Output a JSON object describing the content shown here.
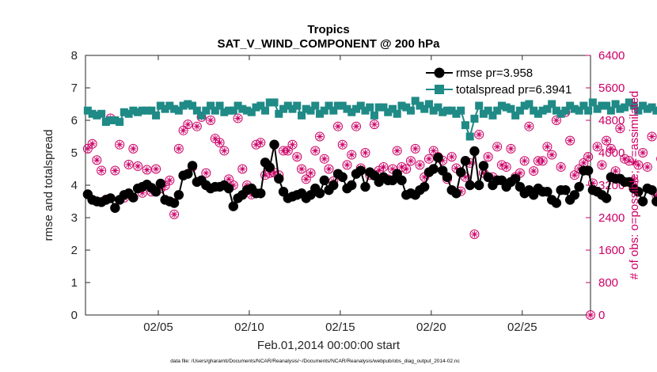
{
  "chart_data": {
    "type": "line",
    "title": "Tropics",
    "subtitle": "SAT_V_WIND_COMPONENT @ 200 hPa",
    "xlabel": "Feb.01,2014 00:00:00 start",
    "ylabel": "rmse and totalspread",
    "ylabel_right": "# of obs: o=possible; ∗=assimilated",
    "footnote": "data file: /Users/gharamti/Documents/NCAR/Reanalysis/~/Documents/NCAR/Reanalysis/webpub/obs_diag_output_2014-02.nc",
    "xlim": [
      1.0,
      28.75
    ],
    "ylim": [
      0,
      8
    ],
    "ylim_right": [
      0,
      6400
    ],
    "x_ticks": [
      5,
      10,
      15,
      20,
      25
    ],
    "x_tick_labels": [
      "02/05",
      "02/10",
      "02/15",
      "02/20",
      "02/25"
    ],
    "y_ticks": [
      0,
      1,
      2,
      3,
      4,
      5,
      6,
      7,
      8
    ],
    "y_tick_labels": [
      "0",
      "1",
      "2",
      "3",
      "4",
      "5",
      "6",
      "7",
      "8"
    ],
    "y_right_ticks": [
      0,
      800,
      1600,
      2400,
      3200,
      4000,
      4800,
      5600,
      6400
    ],
    "y_right_tick_labels": [
      "0",
      "800",
      "1600",
      "2400",
      "3200",
      "4000",
      "4800",
      "5600",
      "6400"
    ],
    "x_start": 1.125,
    "x_step": 0.25,
    "series": [
      {
        "name": "rmse",
        "legend": "rmse pr=3.958",
        "color": "#000000",
        "marker": "circle",
        "values": [
          3.72,
          3.55,
          3.5,
          3.48,
          3.55,
          3.6,
          3.3,
          3.55,
          3.7,
          3.75,
          3.62,
          3.9,
          3.95,
          4.02,
          3.92,
          3.8,
          4.05,
          3.55,
          3.5,
          3.45,
          3.7,
          4.3,
          4.35,
          4.6,
          4.1,
          4.15,
          4.0,
          3.9,
          3.95,
          3.95,
          4.0,
          3.9,
          3.35,
          3.6,
          3.7,
          3.85,
          3.9,
          3.75,
          3.75,
          4.7,
          4.55,
          5.25,
          4.2,
          3.8,
          3.6,
          3.65,
          3.7,
          3.75,
          3.6,
          3.7,
          3.9,
          3.75,
          4.15,
          3.85,
          4.0,
          4.35,
          4.25,
          3.9,
          4.0,
          4.35,
          4.45,
          3.95,
          4.4,
          4.3,
          4.1,
          4.25,
          4.15,
          4.15,
          4.35,
          4.15,
          3.7,
          3.75,
          3.7,
          3.85,
          3.95,
          4.4,
          4.5,
          4.85,
          4.45,
          4.25,
          3.85,
          3.75,
          4.4,
          4.75,
          4.0,
          5.05,
          4.0,
          4.6,
          4.25,
          4.0,
          4.15,
          4.15,
          3.95,
          4.1,
          4.2,
          3.95,
          3.75,
          3.85,
          3.7,
          3.9,
          3.8,
          3.8,
          3.55,
          3.45,
          3.85,
          3.85,
          3.55,
          3.7,
          3.95,
          4.45,
          4.45,
          3.85,
          3.8,
          3.7,
          3.6,
          4.25,
          4.2,
          4.2,
          4.1,
          4.1,
          3.9,
          3.8,
          3.5,
          3.9,
          3.85,
          3.5,
          3.45,
          3.42
        ]
      },
      {
        "name": "totalspread",
        "legend": "totalspread pr=6.3941",
        "color": "#1f8a86",
        "marker": "square",
        "values": [
          6.3,
          6.2,
          6.15,
          6.2,
          5.95,
          6.0,
          6.0,
          5.95,
          6.25,
          6.2,
          6.3,
          6.25,
          6.3,
          6.3,
          6.3,
          6.15,
          6.45,
          6.35,
          6.45,
          6.35,
          6.3,
          6.45,
          6.5,
          6.45,
          6.3,
          6.15,
          6.3,
          6.45,
          6.3,
          6.45,
          6.25,
          6.3,
          6.3,
          6.45,
          6.35,
          6.3,
          6.25,
          6.4,
          6.45,
          6.3,
          6.55,
          6.55,
          6.2,
          6.35,
          6.45,
          6.35,
          6.45,
          6.15,
          6.35,
          6.3,
          6.45,
          6.2,
          6.3,
          6.45,
          6.3,
          6.45,
          6.45,
          6.35,
          6.25,
          6.35,
          6.45,
          6.3,
          6.4,
          6.15,
          6.4,
          6.4,
          6.25,
          6.35,
          6.2,
          6.45,
          6.4,
          6.3,
          6.6,
          6.45,
          6.35,
          6.5,
          6.3,
          6.4,
          6.25,
          6.3,
          6.3,
          6.2,
          6.3,
          5.85,
          5.5,
          6.05,
          6.45,
          6.2,
          6.3,
          6.15,
          6.3,
          6.45,
          6.4,
          6.35,
          6.15,
          6.3,
          6.45,
          6.5,
          6.3,
          6.2,
          6.3,
          6.35,
          6.5,
          6.3,
          6.2,
          6.3,
          6.45,
          6.35,
          6.3,
          6.45,
          6.3,
          6.55,
          6.35,
          6.45,
          6.45,
          6.3,
          6.5,
          6.35,
          6.4,
          6.55,
          6.45,
          6.3,
          6.45,
          6.35,
          6.4,
          6.3,
          6.75,
          6.75
        ]
      }
    ],
    "obs_series": [
      {
        "name": "possible",
        "color": "#cc0066",
        "marker": "circle-open",
        "values": [
          4100,
          4220,
          3820,
          3560,
          2850,
          4850,
          3560,
          4200,
          2890,
          3710,
          4100,
          3670,
          3010,
          3580,
          3040,
          3600,
          3120,
          3190,
          3320,
          2480,
          4100,
          4550,
          4700,
          3650,
          4650,
          4880,
          3500,
          4800,
          4350,
          4250,
          4050,
          3350,
          3200,
          4850,
          3600,
          3200,
          2970,
          4200,
          4250,
          3450,
          3500,
          3510,
          3450,
          4050,
          4050,
          4200,
          3900,
          3600,
          3350,
          3500,
          4050,
          4400,
          3850,
          3600,
          3300,
          4650,
          4200,
          3700,
          3950,
          4650,
          3620,
          4000,
          3450,
          4700,
          3560,
          3650,
          3350,
          3600,
          4050,
          3650,
          3600,
          3800,
          4100,
          3700,
          3400,
          3850,
          4050,
          3900,
          3810,
          3350,
          3900,
          3620,
          3050,
          3400,
          3750,
          1990,
          4450,
          3500,
          3900,
          3400,
          4150,
          3700,
          3650,
          4100,
          3400,
          3500,
          3800,
          4650,
          3550,
          3800,
          3800,
          4150,
          3950,
          4800,
          3650,
          5000,
          4300,
          3450,
          3600,
          3750,
          3900,
          3250,
          4150,
          3700,
          4300,
          4100,
          3550,
          4600,
          3850,
          3800,
          3300,
          3700,
          4000,
          3650,
          4400,
          2950,
          3850,
          3600
        ]
      },
      {
        "name": "assimilated",
        "color": "#cc0066",
        "marker": "asterisk",
        "values": [
          4100,
          4220,
          3820,
          3560,
          2850,
          4850,
          3560,
          4200,
          2890,
          3710,
          4100,
          3670,
          3010,
          3580,
          3040,
          3600,
          3120,
          3190,
          3320,
          2480,
          4100,
          4550,
          4700,
          3650,
          4650,
          4880,
          3500,
          4800,
          4350,
          4250,
          4050,
          3350,
          3200,
          4850,
          3600,
          3200,
          2970,
          4200,
          4250,
          3450,
          3500,
          3510,
          3450,
          4050,
          4050,
          4200,
          3900,
          3600,
          3350,
          3500,
          4050,
          4400,
          3850,
          3600,
          3300,
          4650,
          4200,
          3700,
          3950,
          4650,
          3620,
          4000,
          3450,
          4700,
          3560,
          3650,
          3350,
          3600,
          4050,
          3650,
          3600,
          3800,
          4100,
          3700,
          3400,
          3850,
          4050,
          3900,
          3810,
          3350,
          3900,
          3620,
          3050,
          3400,
          3750,
          1990,
          4450,
          3500,
          3900,
          3400,
          4150,
          3700,
          3650,
          4100,
          3400,
          3500,
          3800,
          4650,
          3550,
          3800,
          3800,
          4150,
          3950,
          4800,
          3650,
          5000,
          4300,
          3450,
          3600,
          3750,
          3900,
          3250,
          4150,
          3700,
          4300,
          4100,
          3550,
          4600,
          3850,
          3800,
          3300,
          3700,
          4000,
          3650,
          4400,
          2950,
          3850,
          3600
        ]
      }
    ],
    "extra_points": [
      {
        "name": "possible",
        "x": 28.75,
        "value": 0
      }
    ],
    "legend_location": "top-right",
    "grid": false
  }
}
